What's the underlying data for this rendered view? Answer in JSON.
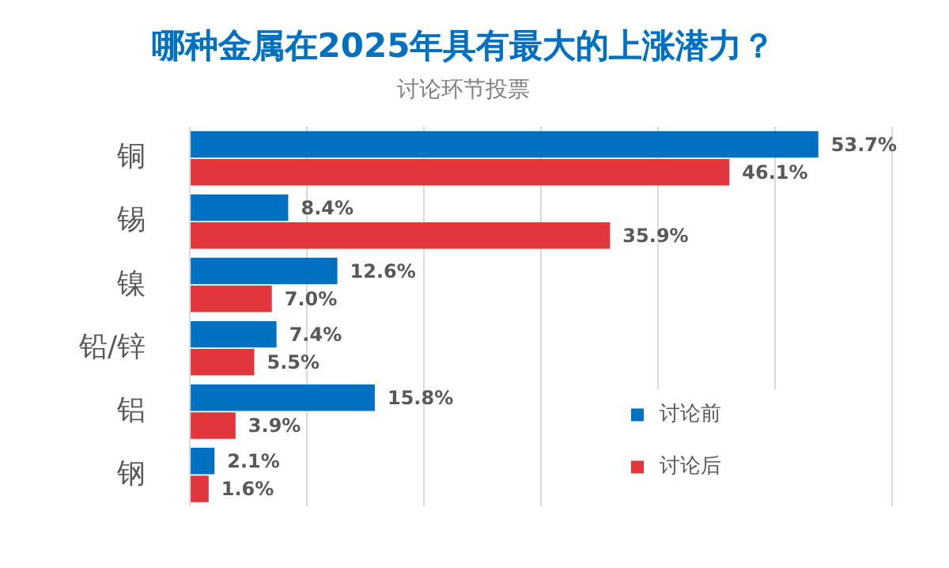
{
  "chart_data": {
    "type": "bar",
    "orientation": "horizontal",
    "title": "哪种金属在2025年具有最大的上涨潜力？",
    "subtitle": "讨论环节投票",
    "categories": [
      "铜",
      "锡",
      "镍",
      "铅/锌",
      "铝",
      "钢"
    ],
    "series": [
      {
        "name": "讨论前",
        "color": "#0070c0",
        "values": [
          53.7,
          8.4,
          12.6,
          7.4,
          15.8,
          2.1
        ],
        "value_labels": [
          "53.7%",
          "8.4%",
          "12.6%",
          "7.4%",
          "15.8%",
          "2.1%"
        ]
      },
      {
        "name": "讨论后",
        "color": "#e0363c",
        "values": [
          46.1,
          35.9,
          7.0,
          5.5,
          3.9,
          1.6
        ],
        "value_labels": [
          "46.1%",
          "35.9%",
          "7.0%",
          "5.5%",
          "3.9%",
          "1.6%"
        ]
      }
    ],
    "xlim": [
      0,
      60
    ],
    "xticks": [
      {
        "value": 0,
        "label": null
      },
      {
        "value": 10,
        "label": null
      },
      {
        "value": 20,
        "label": null
      },
      {
        "value": 30,
        "label": null
      },
      {
        "value": 40,
        "label": null
      },
      {
        "value": 50,
        "label": null
      },
      {
        "value": 60,
        "label": null
      }
    ],
    "tick_labels": "y",
    "grid": "x",
    "legend": "bottom right"
  }
}
